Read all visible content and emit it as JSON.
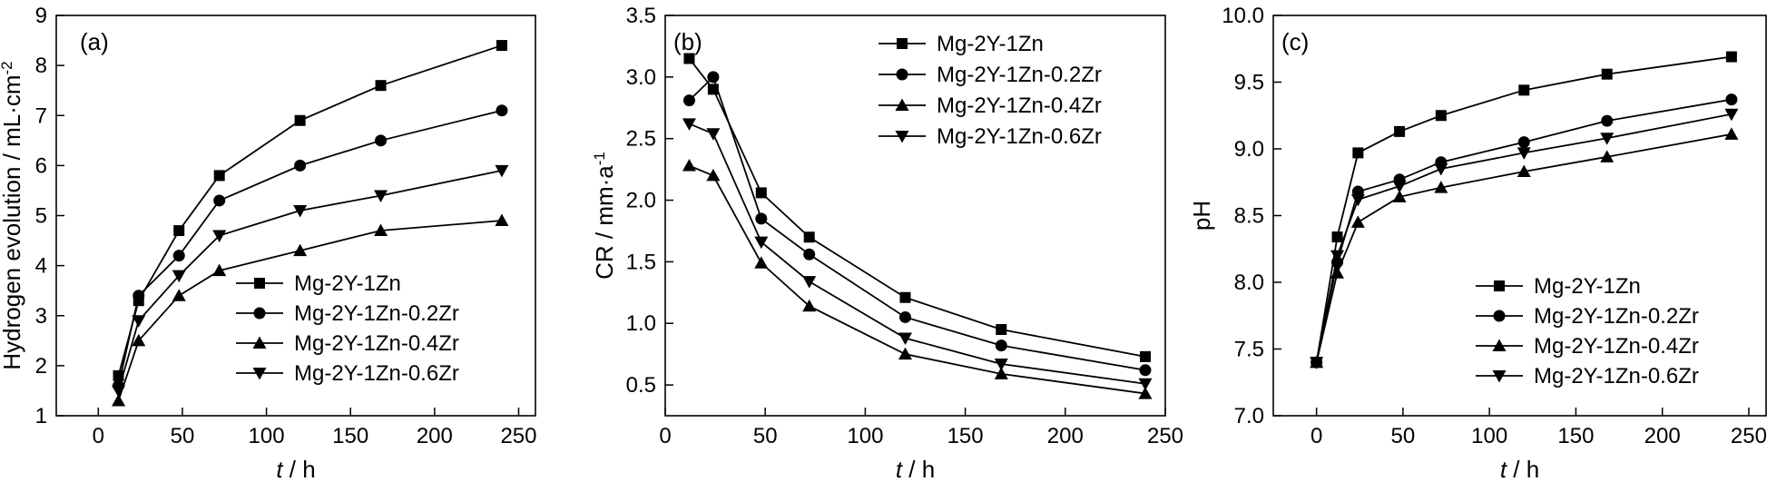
{
  "chart_data": [
    {
      "panel": "(a)",
      "type": "line",
      "xlabel_italic": "t",
      "xlabel_unit": " / h",
      "ylabel": "Hydrogen evolution / mL·cm",
      "ylabel_sup": "-2",
      "xlim": [
        -25,
        260
      ],
      "ylim": [
        1,
        9
      ],
      "xticks": [
        0,
        50,
        100,
        150,
        200,
        250
      ],
      "yticks": [
        1,
        2,
        3,
        4,
        5,
        6,
        7,
        8,
        9
      ],
      "legend_position": "lower-right",
      "series": [
        {
          "name": "Mg-2Y-1Zn",
          "marker": "square",
          "x": [
            12,
            24,
            48,
            72,
            120,
            168,
            240
          ],
          "y": [
            1.8,
            3.3,
            4.7,
            5.8,
            6.9,
            7.6,
            8.4
          ]
        },
        {
          "name": "Mg-2Y-1Zn-0.2Zr",
          "marker": "circle",
          "x": [
            12,
            24,
            48,
            72,
            120,
            168,
            240
          ],
          "y": [
            1.6,
            3.4,
            4.2,
            5.3,
            6.0,
            6.5,
            7.1
          ]
        },
        {
          "name": "Mg-2Y-1Zn-0.4Zr",
          "marker": "triangle-up",
          "x": [
            12,
            24,
            48,
            72,
            120,
            168,
            240
          ],
          "y": [
            1.3,
            2.5,
            3.4,
            3.9,
            4.3,
            4.7,
            4.9
          ]
        },
        {
          "name": "Mg-2Y-1Zn-0.6Zr",
          "marker": "triangle-down",
          "x": [
            12,
            24,
            48,
            72,
            120,
            168,
            240
          ],
          "y": [
            1.5,
            2.9,
            3.8,
            4.6,
            5.1,
            5.4,
            5.9
          ]
        }
      ]
    },
    {
      "panel": "(b)",
      "type": "line",
      "xlabel_italic": "t",
      "xlabel_unit": " / h",
      "ylabel": "CR / mm·a",
      "ylabel_sup": "-1",
      "xlim": [
        0,
        250
      ],
      "ylim": [
        0.25,
        3.5
      ],
      "xticks": [
        0,
        50,
        100,
        150,
        200,
        250
      ],
      "yticks": [
        0.5,
        1.0,
        1.5,
        2.0,
        2.5,
        3.0,
        3.5
      ],
      "ytick_labels": [
        "0.5",
        "1.0",
        "1.5",
        "2.0",
        "2.5",
        "3.0",
        "3.5"
      ],
      "legend_position": "top-right",
      "series": [
        {
          "name": "Mg-2Y-1Zn",
          "marker": "square",
          "x": [
            12,
            24,
            48,
            72,
            120,
            168,
            240
          ],
          "y": [
            3.15,
            2.9,
            2.06,
            1.7,
            1.21,
            0.95,
            0.73
          ]
        },
        {
          "name": "Mg-2Y-1Zn-0.2Zr",
          "marker": "circle",
          "x": [
            12,
            24,
            48,
            72,
            120,
            168,
            240
          ],
          "y": [
            2.81,
            3.0,
            1.85,
            1.56,
            1.05,
            0.82,
            0.62
          ]
        },
        {
          "name": "Mg-2Y-1Zn-0.4Zr",
          "marker": "triangle-up",
          "x": [
            12,
            24,
            48,
            72,
            120,
            168,
            240
          ],
          "y": [
            2.28,
            2.2,
            1.49,
            1.14,
            0.75,
            0.59,
            0.43
          ]
        },
        {
          "name": "Mg-2Y-1Zn-0.6Zr",
          "marker": "triangle-down",
          "x": [
            12,
            24,
            48,
            72,
            120,
            168,
            240
          ],
          "y": [
            2.62,
            2.54,
            1.66,
            1.34,
            0.88,
            0.67,
            0.51
          ]
        }
      ]
    },
    {
      "panel": "(c)",
      "type": "line",
      "xlabel_italic": "t",
      "xlabel_unit": " / h",
      "ylabel": "pH",
      "ylabel_sup": "",
      "xlim": [
        -25,
        260
      ],
      "ylim": [
        7.0,
        10.0
      ],
      "xticks": [
        0,
        50,
        100,
        150,
        200,
        250
      ],
      "yticks": [
        7.0,
        7.5,
        8.0,
        8.5,
        9.0,
        9.5,
        10.0
      ],
      "ytick_labels": [
        "7.0",
        "7.5",
        "8.0",
        "8.5",
        "9.0",
        "9.5",
        "10.0"
      ],
      "legend_position": "lower-right",
      "series": [
        {
          "name": "Mg-2Y-1Zn",
          "marker": "square",
          "x": [
            0,
            12,
            24,
            48,
            72,
            120,
            168,
            240
          ],
          "y": [
            7.4,
            8.34,
            8.97,
            9.13,
            9.25,
            9.44,
            9.56,
            9.69
          ]
        },
        {
          "name": "Mg-2Y-1Zn-0.2Zr",
          "marker": "circle",
          "x": [
            0,
            12,
            24,
            48,
            72,
            120,
            168,
            240
          ],
          "y": [
            7.4,
            8.15,
            8.68,
            8.77,
            8.9,
            9.05,
            9.21,
            9.37
          ]
        },
        {
          "name": "Mg-2Y-1Zn-0.4Zr",
          "marker": "triangle-up",
          "x": [
            0,
            12,
            24,
            48,
            72,
            120,
            168,
            240
          ],
          "y": [
            7.4,
            8.07,
            8.45,
            8.64,
            8.71,
            8.83,
            8.94,
            9.11
          ]
        },
        {
          "name": "Mg-2Y-1Zn-0.6Zr",
          "marker": "triangle-down",
          "x": [
            0,
            12,
            24,
            48,
            72,
            120,
            168,
            240
          ],
          "y": [
            7.4,
            8.2,
            8.62,
            8.72,
            8.85,
            8.97,
            9.08,
            9.26
          ]
        }
      ]
    }
  ]
}
